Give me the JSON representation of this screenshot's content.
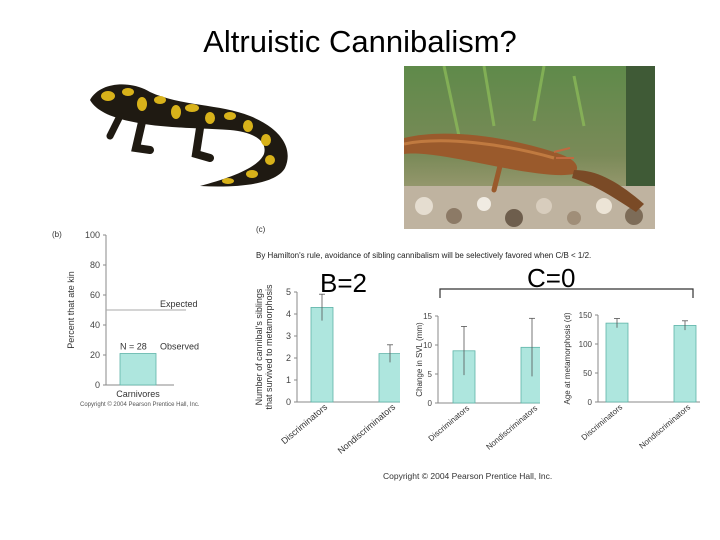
{
  "slide": {
    "title": "Altruistic Cannibalism?",
    "b_label": "B=2",
    "c_label": "C=0"
  },
  "photos": {
    "tiger_salamander": "tiger-salamander-photo",
    "cannibal_larva": "cannibal-larva-photo"
  },
  "figure": {
    "panel_b_tag": "(b)",
    "panel_c_tag": "(c)",
    "hamilton_text": "By Hamilton's rule, avoidance of sibling cannibalism will be selectively favored when C/B < 1/2.",
    "copyright_small": "Copyright © 2004 Pearson Prentice Hall, Inc.",
    "copyright_main": "Copyright © 2004 Pearson Prentice Hall, Inc."
  },
  "chart_data": [
    {
      "type": "bar",
      "panel": "(b)",
      "ylabel": "Percent that ate kin",
      "ylim": [
        0,
        100
      ],
      "yticks": [
        "0",
        "20",
        "40",
        "60",
        "80",
        "100"
      ],
      "categories": [
        "Carnivores"
      ],
      "values": [
        21
      ],
      "annotations": {
        "expected": "Expected",
        "observed": "Observed",
        "n": "N = 28"
      },
      "expected_value": 50
    },
    {
      "type": "bar",
      "panel": "(c)",
      "ylabel_line1": "Number of cannibal's siblings",
      "ylabel_line2": "that survived to metamorphosis",
      "ylim": [
        0,
        5
      ],
      "yticks": [
        "0",
        "1",
        "2",
        "3",
        "4",
        "5"
      ],
      "categories": [
        "Discriminators",
        "Nondiscriminators"
      ],
      "values": [
        4.3,
        2.2
      ],
      "errors": [
        0.6,
        0.4
      ]
    },
    {
      "type": "bar",
      "ylabel": "Change in SVL (mm)",
      "ylim": [
        0,
        15
      ],
      "yticks": [
        "0",
        "5",
        "10",
        "15"
      ],
      "categories": [
        "Discriminators",
        "Nondiscriminators"
      ],
      "values": [
        9,
        9.6
      ],
      "errors": [
        4.2,
        5
      ]
    },
    {
      "type": "bar",
      "ylabel": "Age at metamorphosis (d)",
      "ylim": [
        0,
        150
      ],
      "yticks": [
        "0",
        "50",
        "100",
        "150"
      ],
      "categories": [
        "Discriminators",
        "Nondiscriminators"
      ],
      "values": [
        136,
        132
      ],
      "errors": [
        8,
        8
      ]
    }
  ],
  "colors": {
    "bar_fill": "#aee6de",
    "bar_stroke": "#5fb3a8",
    "axis": "#888888",
    "salamander_dark": "#1f1a12",
    "salamander_yellow": "#d8b21a"
  }
}
